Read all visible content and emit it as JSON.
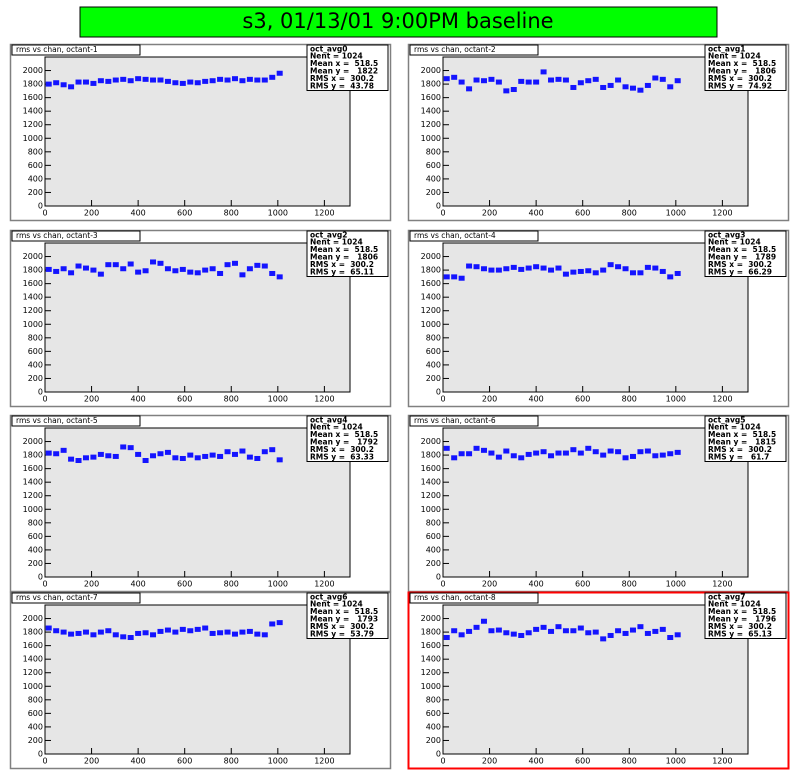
{
  "title": "s3, 01/13/01 9:00PM baseline",
  "chart_data": [
    {
      "type": "scatter",
      "title": "rms vs chan, octant-1",
      "color": "#1414ff",
      "stats": {
        "name": "oct_avg0",
        "lines": [
          "Nent = 1024",
          "Mean x =  518.5",
          "Mean y =   1822",
          "RMS x =  300.2",
          "RMS y =  43.78"
        ]
      },
      "xlim": [
        0,
        1310
      ],
      "ylim": [
        0,
        2200
      ],
      "xticks": [
        0,
        200,
        400,
        600,
        800,
        1000,
        1200
      ],
      "yticks": [
        0,
        200,
        400,
        600,
        800,
        1000,
        1200,
        1400,
        1600,
        1800,
        2000
      ],
      "x": [
        16,
        48,
        80,
        112,
        144,
        176,
        208,
        240,
        272,
        304,
        336,
        368,
        400,
        432,
        464,
        496,
        528,
        560,
        592,
        624,
        656,
        688,
        720,
        752,
        784,
        816,
        848,
        880,
        912,
        944,
        976,
        1008
      ],
      "values": [
        1800,
        1820,
        1790,
        1760,
        1830,
        1830,
        1810,
        1850,
        1840,
        1860,
        1870,
        1850,
        1880,
        1870,
        1860,
        1860,
        1840,
        1820,
        1810,
        1830,
        1820,
        1840,
        1850,
        1870,
        1860,
        1880,
        1850,
        1870,
        1860,
        1860,
        1900,
        1960
      ]
    },
    {
      "type": "scatter",
      "title": "rms vs chan, octant-2",
      "color": "#1414ff",
      "stats": {
        "name": "oct_avg1",
        "lines": [
          "Nent = 1024",
          "Mean x =  518.5",
          "Mean y =   1806",
          "RMS x =  300.2",
          "RMS y =  74.92"
        ]
      },
      "xlim": [
        0,
        1310
      ],
      "ylim": [
        0,
        2200
      ],
      "xticks": [
        0,
        200,
        400,
        600,
        800,
        1000,
        1200
      ],
      "yticks": [
        0,
        200,
        400,
        600,
        800,
        1000,
        1200,
        1400,
        1600,
        1800,
        2000
      ],
      "x": [
        16,
        48,
        80,
        112,
        144,
        176,
        208,
        240,
        272,
        304,
        336,
        368,
        400,
        432,
        464,
        496,
        528,
        560,
        592,
        624,
        656,
        688,
        720,
        752,
        784,
        816,
        848,
        880,
        912,
        944,
        976,
        1008
      ],
      "values": [
        1880,
        1900,
        1830,
        1730,
        1860,
        1850,
        1870,
        1830,
        1700,
        1720,
        1840,
        1830,
        1830,
        1980,
        1860,
        1870,
        1860,
        1750,
        1820,
        1850,
        1870,
        1750,
        1780,
        1860,
        1760,
        1740,
        1710,
        1780,
        1890,
        1870,
        1760,
        1850
      ]
    },
    {
      "type": "scatter",
      "title": "rms vs chan, octant-3",
      "color": "#1414ff",
      "stats": {
        "name": "oct_avg2",
        "lines": [
          "Nent = 1024",
          "Mean x =  518.5",
          "Mean y =   1806",
          "RMS x =  300.2",
          "RMS y =  65.11"
        ]
      },
      "xlim": [
        0,
        1310
      ],
      "ylim": [
        0,
        2200
      ],
      "xticks": [
        0,
        200,
        400,
        600,
        800,
        1000,
        1200
      ],
      "yticks": [
        0,
        200,
        400,
        600,
        800,
        1000,
        1200,
        1400,
        1600,
        1800,
        2000
      ],
      "x": [
        16,
        48,
        80,
        112,
        144,
        176,
        208,
        240,
        272,
        304,
        336,
        368,
        400,
        432,
        464,
        496,
        528,
        560,
        592,
        624,
        656,
        688,
        720,
        752,
        784,
        816,
        848,
        880,
        912,
        944,
        976,
        1008
      ],
      "values": [
        1810,
        1780,
        1820,
        1760,
        1860,
        1830,
        1800,
        1740,
        1880,
        1880,
        1820,
        1890,
        1770,
        1790,
        1920,
        1900,
        1820,
        1790,
        1810,
        1770,
        1760,
        1800,
        1820,
        1750,
        1880,
        1900,
        1730,
        1820,
        1870,
        1860,
        1750,
        1700
      ]
    },
    {
      "type": "scatter",
      "title": "rms vs chan, octant-4",
      "color": "#1414ff",
      "stats": {
        "name": "oct_avg3",
        "lines": [
          "Nent = 1024",
          "Mean x =  518.5",
          "Mean y =   1789",
          "RMS x =  300.2",
          "RMS y =  66.29"
        ]
      },
      "xlim": [
        0,
        1310
      ],
      "ylim": [
        0,
        2200
      ],
      "xticks": [
        0,
        200,
        400,
        600,
        800,
        1000,
        1200
      ],
      "yticks": [
        0,
        200,
        400,
        600,
        800,
        1000,
        1200,
        1400,
        1600,
        1800,
        2000
      ],
      "x": [
        16,
        48,
        80,
        112,
        144,
        176,
        208,
        240,
        272,
        304,
        336,
        368,
        400,
        432,
        464,
        496,
        528,
        560,
        592,
        624,
        656,
        688,
        720,
        752,
        784,
        816,
        848,
        880,
        912,
        944,
        976,
        1008
      ],
      "values": [
        1700,
        1700,
        1680,
        1860,
        1850,
        1820,
        1800,
        1800,
        1820,
        1840,
        1810,
        1830,
        1850,
        1830,
        1800,
        1830,
        1740,
        1770,
        1780,
        1790,
        1760,
        1800,
        1880,
        1850,
        1820,
        1760,
        1760,
        1840,
        1830,
        1780,
        1700,
        1750
      ]
    },
    {
      "type": "scatter",
      "title": "rms vs chan, octant-5",
      "color": "#1414ff",
      "stats": {
        "name": "oct_avg4",
        "lines": [
          "Nent = 1024",
          "Mean x =  518.5",
          "Mean y =   1792",
          "RMS x =  300.2",
          "RMS y =  63.33"
        ]
      },
      "xlim": [
        0,
        1310
      ],
      "ylim": [
        0,
        2200
      ],
      "xticks": [
        0,
        200,
        400,
        600,
        800,
        1000,
        1200
      ],
      "yticks": [
        0,
        200,
        400,
        600,
        800,
        1000,
        1200,
        1400,
        1600,
        1800,
        2000
      ],
      "x": [
        16,
        48,
        80,
        112,
        144,
        176,
        208,
        240,
        272,
        304,
        336,
        368,
        400,
        432,
        464,
        496,
        528,
        560,
        592,
        624,
        656,
        688,
        720,
        752,
        784,
        816,
        848,
        880,
        912,
        944,
        976,
        1008
      ],
      "values": [
        1830,
        1820,
        1870,
        1740,
        1720,
        1760,
        1770,
        1810,
        1790,
        1780,
        1920,
        1910,
        1810,
        1720,
        1790,
        1820,
        1840,
        1760,
        1750,
        1800,
        1760,
        1780,
        1800,
        1780,
        1850,
        1810,
        1860,
        1770,
        1750,
        1850,
        1880,
        1730
      ]
    },
    {
      "type": "scatter",
      "title": "rms vs chan, octant-6",
      "color": "#1414ff",
      "stats": {
        "name": "oct_avg5",
        "lines": [
          "Nent = 1024",
          "Mean x =  518.5",
          "Mean y =   1815",
          "RMS x =  300.2",
          "RMS y =   61.7"
        ]
      },
      "xlim": [
        0,
        1310
      ],
      "ylim": [
        0,
        2200
      ],
      "xticks": [
        0,
        200,
        400,
        600,
        800,
        1000,
        1200
      ],
      "yticks": [
        0,
        200,
        400,
        600,
        800,
        1000,
        1200,
        1400,
        1600,
        1800,
        2000
      ],
      "x": [
        16,
        48,
        80,
        112,
        144,
        176,
        208,
        240,
        272,
        304,
        336,
        368,
        400,
        432,
        464,
        496,
        528,
        560,
        592,
        624,
        656,
        688,
        720,
        752,
        784,
        816,
        848,
        880,
        912,
        944,
        976,
        1008
      ],
      "values": [
        1900,
        1760,
        1820,
        1820,
        1900,
        1870,
        1830,
        1770,
        1860,
        1790,
        1760,
        1810,
        1830,
        1850,
        1790,
        1830,
        1830,
        1880,
        1830,
        1900,
        1850,
        1800,
        1860,
        1850,
        1760,
        1780,
        1850,
        1860,
        1790,
        1800,
        1820,
        1840
      ]
    },
    {
      "type": "scatter",
      "title": "rms vs chan, octant-7",
      "color": "#1414ff",
      "stats": {
        "name": "oct_avg6",
        "lines": [
          "Nent = 1024",
          "Mean x =  518.5",
          "Mean y =   1793",
          "RMS x =  300.2",
          "RMS y =  53.79"
        ]
      },
      "xlim": [
        0,
        1310
      ],
      "ylim": [
        0,
        2200
      ],
      "xticks": [
        0,
        200,
        400,
        600,
        800,
        1000,
        1200
      ],
      "yticks": [
        0,
        200,
        400,
        600,
        800,
        1000,
        1200,
        1400,
        1600,
        1800,
        2000
      ],
      "x": [
        16,
        48,
        80,
        112,
        144,
        176,
        208,
        240,
        272,
        304,
        336,
        368,
        400,
        432,
        464,
        496,
        528,
        560,
        592,
        624,
        656,
        688,
        720,
        752,
        784,
        816,
        848,
        880,
        912,
        944,
        976,
        1008
      ],
      "values": [
        1860,
        1820,
        1800,
        1770,
        1780,
        1800,
        1760,
        1800,
        1820,
        1760,
        1730,
        1720,
        1780,
        1790,
        1760,
        1810,
        1830,
        1800,
        1840,
        1820,
        1840,
        1860,
        1780,
        1790,
        1800,
        1770,
        1800,
        1810,
        1770,
        1760,
        1920,
        1940
      ]
    },
    {
      "type": "scatter",
      "title": "rms vs chan, octant-8",
      "color": "#1414ff",
      "stats": {
        "name": "oct_avg7",
        "lines": [
          "Nent = 1024",
          "Mean x =  518.5",
          "Mean y =   1796",
          "RMS x =  300.2",
          "RMS y =  65.13"
        ]
      },
      "xlim": [
        0,
        1310
      ],
      "ylim": [
        0,
        2200
      ],
      "xticks": [
        0,
        200,
        400,
        600,
        800,
        1000,
        1200
      ],
      "yticks": [
        0,
        200,
        400,
        600,
        800,
        1000,
        1200,
        1400,
        1600,
        1800,
        2000
      ],
      "x": [
        16,
        48,
        80,
        112,
        144,
        176,
        208,
        240,
        272,
        304,
        336,
        368,
        400,
        432,
        464,
        496,
        528,
        560,
        592,
        624,
        656,
        688,
        720,
        752,
        784,
        816,
        848,
        880,
        912,
        944,
        976,
        1008
      ],
      "values": [
        1720,
        1820,
        1760,
        1810,
        1870,
        1960,
        1820,
        1830,
        1790,
        1770,
        1750,
        1790,
        1840,
        1870,
        1810,
        1880,
        1820,
        1820,
        1860,
        1790,
        1800,
        1700,
        1750,
        1820,
        1780,
        1830,
        1880,
        1780,
        1810,
        1840,
        1720,
        1760
      ]
    }
  ]
}
